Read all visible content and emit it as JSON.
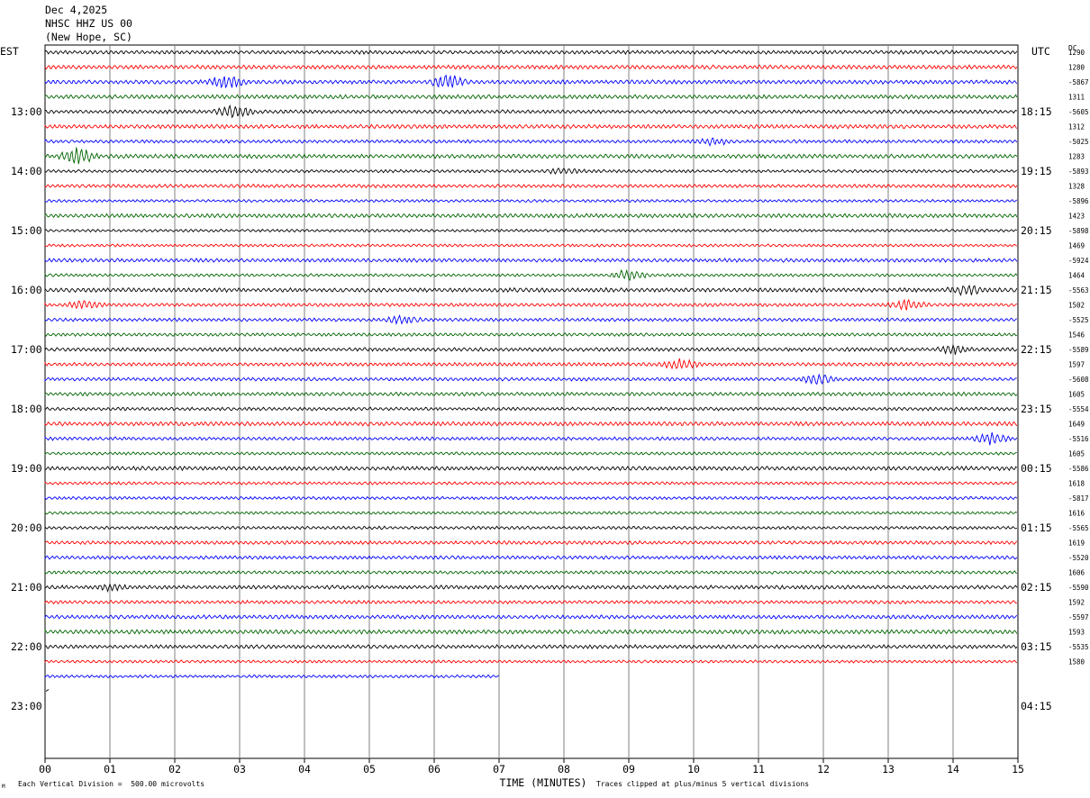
{
  "header": {
    "date": "Dec 4,2025",
    "station": "NHSC HHZ US 00",
    "location": "(New Hope, SC)"
  },
  "left_label": "EST",
  "right_label": "UTC",
  "dc_label": "DC",
  "footer": {
    "scale_text": "Each Vertical Division =  500.00 microvolts",
    "xlabel": "TIME (MINUTES)",
    "clip_text": "Traces clipped at plus/minus 5 vertical divisions",
    "corner_mark": "M"
  },
  "colors": {
    "grid": "#808080",
    "traces": [
      "#000000",
      "#ff0000",
      "#0000ff",
      "#006400"
    ]
  },
  "chart_data": {
    "type": "line",
    "title": "NHSC HHZ US 00 helicorder",
    "xlabel": "TIME (MINUTES)",
    "x_range": [
      0,
      15
    ],
    "x_ticks": [
      "00",
      "01",
      "02",
      "03",
      "04",
      "05",
      "06",
      "07",
      "08",
      "09",
      "10",
      "11",
      "12",
      "13",
      "14",
      "15"
    ],
    "rows_per_hour": 4,
    "left_time_labels": [
      "13:00",
      "14:00",
      "15:00",
      "16:00",
      "17:00",
      "18:00",
      "19:00",
      "20:00",
      "21:00",
      "22:00",
      "23:00"
    ],
    "right_time_labels": [
      "18:15",
      "19:15",
      "20:15",
      "21:15",
      "22:15",
      "23:15",
      "00:15",
      "01:15",
      "02:15",
      "03:15",
      "04:15"
    ],
    "dc_offsets": [
      "1290",
      "1280",
      "-5867",
      "1311",
      "-5605",
      "1312",
      "-5025",
      "1283",
      "-5893",
      "1328",
      "-5896",
      "1423",
      "-5898",
      "1469",
      "-5924",
      "1464",
      "-5563",
      "1502",
      "-5525",
      "1546",
      "-5589",
      "1597",
      "-5608",
      "1605",
      "-5554",
      "1649",
      "-5516",
      "1605",
      "-5586",
      "1618",
      "-5817",
      "1616",
      "-5565",
      "1619",
      "-5520",
      "1606",
      "-5590",
      "1592",
      "-5597",
      "1593",
      "-5535",
      "1580"
    ],
    "trace_count": 43,
    "last_trace_end_minute": 7.0,
    "events": [
      {
        "row": 2,
        "minute": 2.8,
        "amp": 1.2
      },
      {
        "row": 2,
        "minute": 6.2,
        "amp": 1.3
      },
      {
        "row": 4,
        "minute": 2.9,
        "amp": 1.1
      },
      {
        "row": 7,
        "minute": 0.5,
        "amp": 1.6
      },
      {
        "row": 6,
        "minute": 10.3,
        "amp": 0.6
      },
      {
        "row": 8,
        "minute": 8.0,
        "amp": 0.5
      },
      {
        "row": 15,
        "minute": 9.0,
        "amp": 1.0
      },
      {
        "row": 16,
        "minute": 14.2,
        "amp": 0.8
      },
      {
        "row": 17,
        "minute": 13.3,
        "amp": 0.9
      },
      {
        "row": 17,
        "minute": 0.6,
        "amp": 0.7
      },
      {
        "row": 18,
        "minute": 5.5,
        "amp": 0.7
      },
      {
        "row": 20,
        "minute": 14.0,
        "amp": 0.7
      },
      {
        "row": 21,
        "minute": 9.8,
        "amp": 0.9
      },
      {
        "row": 22,
        "minute": 11.9,
        "amp": 0.9
      },
      {
        "row": 26,
        "minute": 14.6,
        "amp": 1.0
      },
      {
        "row": 36,
        "minute": 1.0,
        "amp": 0.5
      }
    ]
  }
}
